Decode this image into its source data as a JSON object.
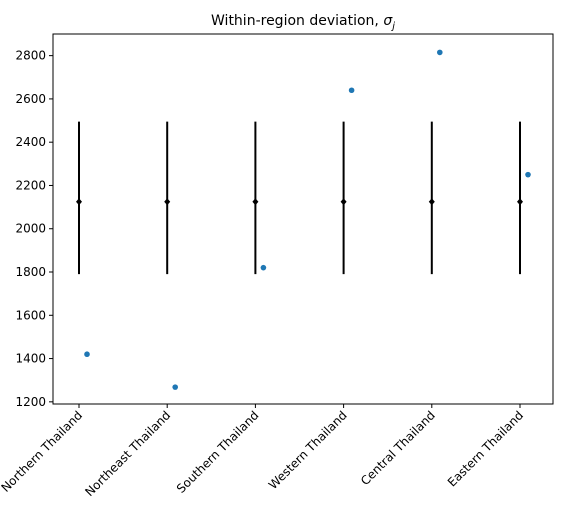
{
  "chart_data": {
    "type": "scatter",
    "title": "Within-region deviation, ",
    "title_symbol": "σ",
    "title_subscript": "j",
    "xlabel": "",
    "ylabel": "",
    "categories": [
      "Northern Thailand",
      "Northeast Thailand",
      "Southern Thailand",
      "Western Thailand",
      "Central Thailand",
      "Eastern Thailand"
    ],
    "ylim": [
      1190,
      2900
    ],
    "yticks": [
      1200,
      1400,
      1600,
      1800,
      2000,
      2200,
      2400,
      2600,
      2800
    ],
    "grid": false,
    "prior": {
      "center": [
        2125,
        2125,
        2125,
        2125,
        2125,
        2125
      ],
      "low": [
        1790,
        1790,
        1790,
        1790,
        1790,
        1790
      ],
      "high": [
        2495,
        2495,
        2495,
        2495,
        2495,
        2495
      ],
      "color": "#000000"
    },
    "observed": {
      "values": [
        1420,
        1268,
        1820,
        2640,
        2815,
        2250
      ],
      "color": "#1f77b4"
    }
  }
}
